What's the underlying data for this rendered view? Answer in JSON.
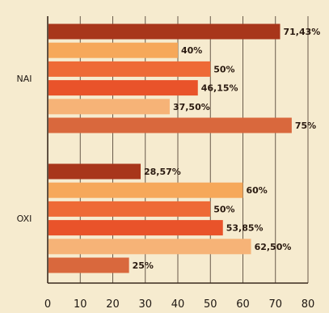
{
  "chart_data": {
    "type": "bar",
    "orientation": "horizontal",
    "groups": [
      {
        "category": "NAI",
        "values": [
          71.43,
          40,
          50,
          46.15,
          37.5,
          75
        ],
        "labels": [
          "71,43%",
          "40%",
          "50%",
          "46,15%",
          "37,50%",
          "75%"
        ]
      },
      {
        "category": "OXI",
        "values": [
          28.57,
          60,
          50,
          53.85,
          62.5,
          25
        ],
        "labels": [
          "28,57%",
          "60%",
          "50%",
          "53,85%",
          "62,50%",
          "25%"
        ]
      }
    ],
    "bar_colors": [
      "#a8361b",
      "#f6a85a",
      "#ee6a36",
      "#e9532a",
      "#f6b377",
      "#d9683d"
    ],
    "xlim": [
      0,
      80
    ],
    "xticks": [
      0,
      10,
      20,
      30,
      40,
      50,
      60,
      70,
      80
    ],
    "grid": true,
    "xlabel": "",
    "ylabel": "",
    "title": ""
  }
}
